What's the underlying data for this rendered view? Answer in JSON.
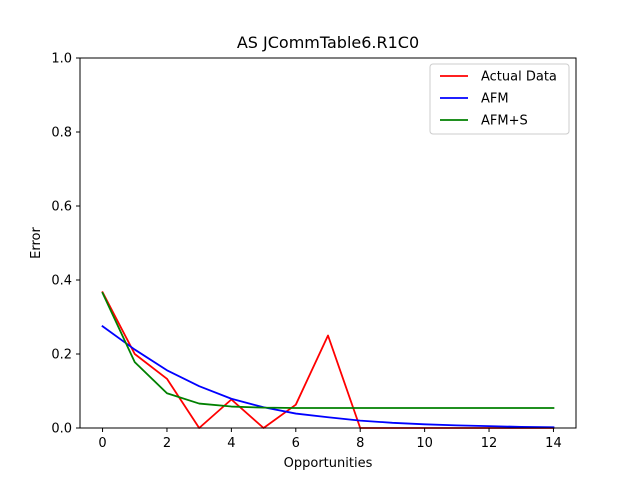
{
  "chart_data": {
    "type": "line",
    "title": "AS JCommTable6.R1C0",
    "xlabel": "Opportunities",
    "ylabel": "Error",
    "xlim": [
      -0.7,
      14.7
    ],
    "ylim": [
      0,
      1.0
    ],
    "xticks": [
      0,
      2,
      4,
      6,
      8,
      10,
      12,
      14
    ],
    "yticks": [
      0.0,
      0.2,
      0.4,
      0.6,
      0.8,
      1.0
    ],
    "grid": false,
    "legend_position": "top-right",
    "x": [
      0,
      1,
      2,
      3,
      4,
      5,
      6,
      7,
      8,
      9,
      10,
      11,
      12,
      13,
      14
    ],
    "series": [
      {
        "name": "Actual Data",
        "color": "#ff0000",
        "values": [
          0.367,
          0.2,
          0.133,
          0.0,
          0.077,
          0.0,
          0.063,
          0.25,
          0.0,
          0.0,
          0.0,
          0.0,
          0.0,
          0.0,
          0.0
        ]
      },
      {
        "name": "AFM",
        "color": "#0000ff",
        "values": [
          0.275,
          0.212,
          0.156,
          0.113,
          0.079,
          0.056,
          0.039,
          0.029,
          0.02,
          0.014,
          0.01,
          0.007,
          0.005,
          0.003,
          0.002
        ]
      },
      {
        "name": "AFM+S",
        "color": "#008000",
        "values": [
          0.365,
          0.178,
          0.094,
          0.066,
          0.058,
          0.055,
          0.054,
          0.054,
          0.054,
          0.054,
          0.054,
          0.054,
          0.054,
          0.054,
          0.054
        ]
      }
    ]
  }
}
